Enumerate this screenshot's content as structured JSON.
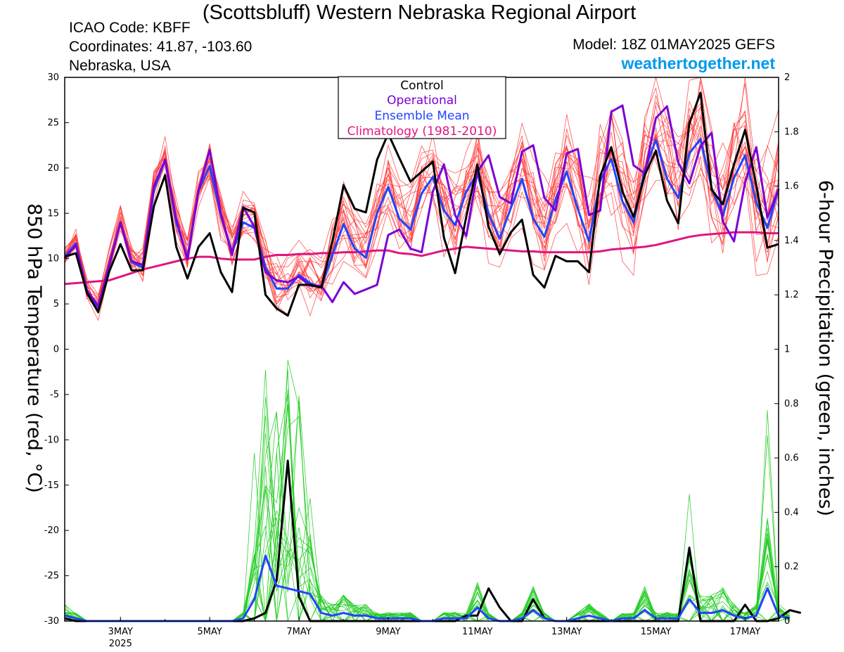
{
  "header": {
    "title": "(Scottsbluff) Western Nebraska Regional Airport",
    "icao": "ICAO Code: KBFF",
    "coordinates": "Coordinates: 41.87, -103.60",
    "region": "Nebraska, USA",
    "model": "Model: 18Z 01MAY2025 GEFS",
    "site": "weathertogether.net"
  },
  "colors": {
    "ensemble_temp": "#ff3b3b",
    "ensemble_precip": "#22cc22",
    "control": "#000000",
    "operational": "#7a00d6",
    "ensemble_mean": "#2244ff",
    "climatology": "#e0157f"
  },
  "chart_data": {
    "type": "line",
    "ylabel_left": "850 hPa Temperature (red, °C)",
    "ylabel_right": "6-hour Precipitation (green, inches)",
    "ylim_left": [
      -30,
      30
    ],
    "ylim_right": [
      0,
      2
    ],
    "yticks_left": [
      "30",
      "25",
      "20",
      "15",
      "10",
      "5",
      "0",
      "-5",
      "-10",
      "-15",
      "-20",
      "-25",
      "-30"
    ],
    "yticks_right": [
      "2",
      "1.8",
      "1.6",
      "1.4",
      "1.2",
      "1",
      "0.8",
      "0.6",
      "0.4",
      "0.2",
      "0"
    ],
    "xticks": [
      {
        "label": "3MAY",
        "sub": "2025",
        "day": 3
      },
      {
        "label": "5MAY",
        "sub": "",
        "day": 5
      },
      {
        "label": "7MAY",
        "sub": "",
        "day": 7
      },
      {
        "label": "9MAY",
        "sub": "",
        "day": 9
      },
      {
        "label": "11MAY",
        "sub": "",
        "day": 11
      },
      {
        "label": "13MAY",
        "sub": "",
        "day": 13
      },
      {
        "label": "15MAY",
        "sub": "",
        "day": 15
      },
      {
        "label": "17MAY",
        "sub": "",
        "day": 17
      }
    ],
    "x_start_day": 1.75,
    "x_step_days": 0.25,
    "legend": [
      "Control",
      "Operational",
      "Ensemble Mean",
      "Climatology (1981-2010)"
    ],
    "series": [
      {
        "name": "Control",
        "values": [
          10.2,
          10.6,
          6.2,
          4.1,
          8.6,
          11.6,
          8.7,
          8.7,
          15.8,
          19.2,
          11.3,
          7.8,
          11.3,
          12.8,
          8.5,
          6.3,
          15.6,
          15.1,
          6.0,
          4.5,
          3.7,
          7.1,
          7.1,
          6.8,
          11.9,
          18.1,
          15.5,
          15.1,
          20.9,
          23.8,
          21.1,
          18.5,
          19.6,
          20.7,
          12.3,
          8.4,
          14.6,
          20.4,
          13.5,
          10.5,
          12.9,
          14.3,
          8.2,
          6.8,
          10.3,
          9.7,
          9.7,
          8.5,
          19.1,
          22.3,
          17.4,
          14.6,
          19.2,
          21.9,
          16.4,
          13.9,
          24.9,
          28.3,
          17.6,
          16.0,
          20.4,
          24.2,
          18.1,
          11.2,
          11.6
        ]
      },
      {
        "name": "Operational",
        "values": [
          10.0,
          11.5,
          6.5,
          4.8,
          9.3,
          14.0,
          9.7,
          9.3,
          18.0,
          20.9,
          14.4,
          9.9,
          17.5,
          22.0,
          15.0,
          10.4,
          15.7,
          13.5,
          8.5,
          7.6,
          7.4,
          8.0,
          7.0,
          7.0,
          5.2,
          7.4,
          6.1,
          6.6,
          7.1,
          12.6,
          13.2,
          11.1,
          10.7,
          17.4,
          20.4,
          14.8,
          12.5,
          19.6,
          21.4,
          16.8,
          16.1,
          21.8,
          22.5,
          16.7,
          15.3,
          21.6,
          22.1,
          14.8,
          15.3,
          26.2,
          26.9,
          20.3,
          19.4,
          25.5,
          26.8,
          20.6,
          18.3,
          22.4,
          23.9,
          14.1,
          11.9,
          18.4,
          22.3,
          14.5,
          17.7
        ]
      },
      {
        "name": "Ensemble Mean",
        "values": [
          10.2,
          11.7,
          6.2,
          4.6,
          9.4,
          14.0,
          9.6,
          9.0,
          17.6,
          20.9,
          14.0,
          10.1,
          17.5,
          20.2,
          14.8,
          10.7,
          14.0,
          13.4,
          9.0,
          6.7,
          6.7,
          8.2,
          7.3,
          6.8,
          10.4,
          13.8,
          11.1,
          10.1,
          15.0,
          17.9,
          14.4,
          13.2,
          17.2,
          19.0,
          15.3,
          13.7,
          17.4,
          19.4,
          14.9,
          12.2,
          15.6,
          18.8,
          14.4,
          12.4,
          16.5,
          19.6,
          15.5,
          11.9,
          18.6,
          21.0,
          16.3,
          14.0,
          19.8,
          23.1,
          18.8,
          16.7,
          21.6,
          23.2,
          17.8,
          14.7,
          18.9,
          21.4,
          16.2,
          13.4,
          17.7
        ]
      },
      {
        "name": "Climatology (1981-2010)",
        "values": [
          7.2,
          7.3,
          7.4,
          7.5,
          7.6,
          8.0,
          8.4,
          8.8,
          9.1,
          9.4,
          9.7,
          10.0,
          10.2,
          10.2,
          10.0,
          9.9,
          9.9,
          9.9,
          10.2,
          10.4,
          10.4,
          10.5,
          10.5,
          10.6,
          10.6,
          10.7,
          10.7,
          10.8,
          10.9,
          10.9,
          10.6,
          10.5,
          10.3,
          10.6,
          10.9,
          11.1,
          11.3,
          11.2,
          11.1,
          11.0,
          10.9,
          10.8,
          10.8,
          10.7,
          10.7,
          10.7,
          10.7,
          10.7,
          10.8,
          11.0,
          11.1,
          11.2,
          11.3,
          11.5,
          11.8,
          12.1,
          12.4,
          12.6,
          12.7,
          12.8,
          12.9,
          12.9,
          12.9,
          12.8,
          12.8
        ]
      },
      {
        "name": "Control",
        "values": [
          0.01,
          0,
          0,
          0,
          0,
          0,
          0,
          0,
          0,
          0,
          0,
          0,
          0,
          0,
          0,
          0,
          0,
          0.01,
          0.03,
          0.15,
          0.59,
          0.09,
          0,
          0,
          0,
          0,
          0,
          0,
          0,
          0,
          0,
          0,
          0,
          0,
          0,
          0,
          0.02,
          0.02,
          0.12,
          0.05,
          0,
          0,
          0.08,
          0.01,
          0,
          0,
          0,
          0,
          0,
          0,
          0,
          0,
          0,
          0,
          0,
          0,
          0.27,
          0,
          0,
          0,
          0,
          0.06,
          0,
          0,
          0.01,
          0.04,
          0.03
        ]
      },
      {
        "name": "Ensemble Mean",
        "values": [
          0.02,
          0.01,
          0,
          0,
          0,
          0,
          0,
          0,
          0,
          0,
          0,
          0,
          0,
          0,
          0,
          0,
          0.01,
          0.08,
          0.24,
          0.13,
          0.12,
          0.11,
          0.1,
          0.03,
          0.02,
          0.03,
          0.02,
          0.02,
          0.01,
          0.01,
          0.01,
          0.01,
          0,
          0,
          0.01,
          0.01,
          0.01,
          0.05,
          0.01,
          0,
          0,
          0.01,
          0.04,
          0.01,
          0,
          0,
          0.01,
          0.02,
          0.01,
          0,
          0.01,
          0.01,
          0.04,
          0.01,
          0.01,
          0.01,
          0.08,
          0.03,
          0.03,
          0.04,
          0.02,
          0.01,
          0.02,
          0.12,
          0.02,
          0.01
        ]
      }
    ]
  }
}
